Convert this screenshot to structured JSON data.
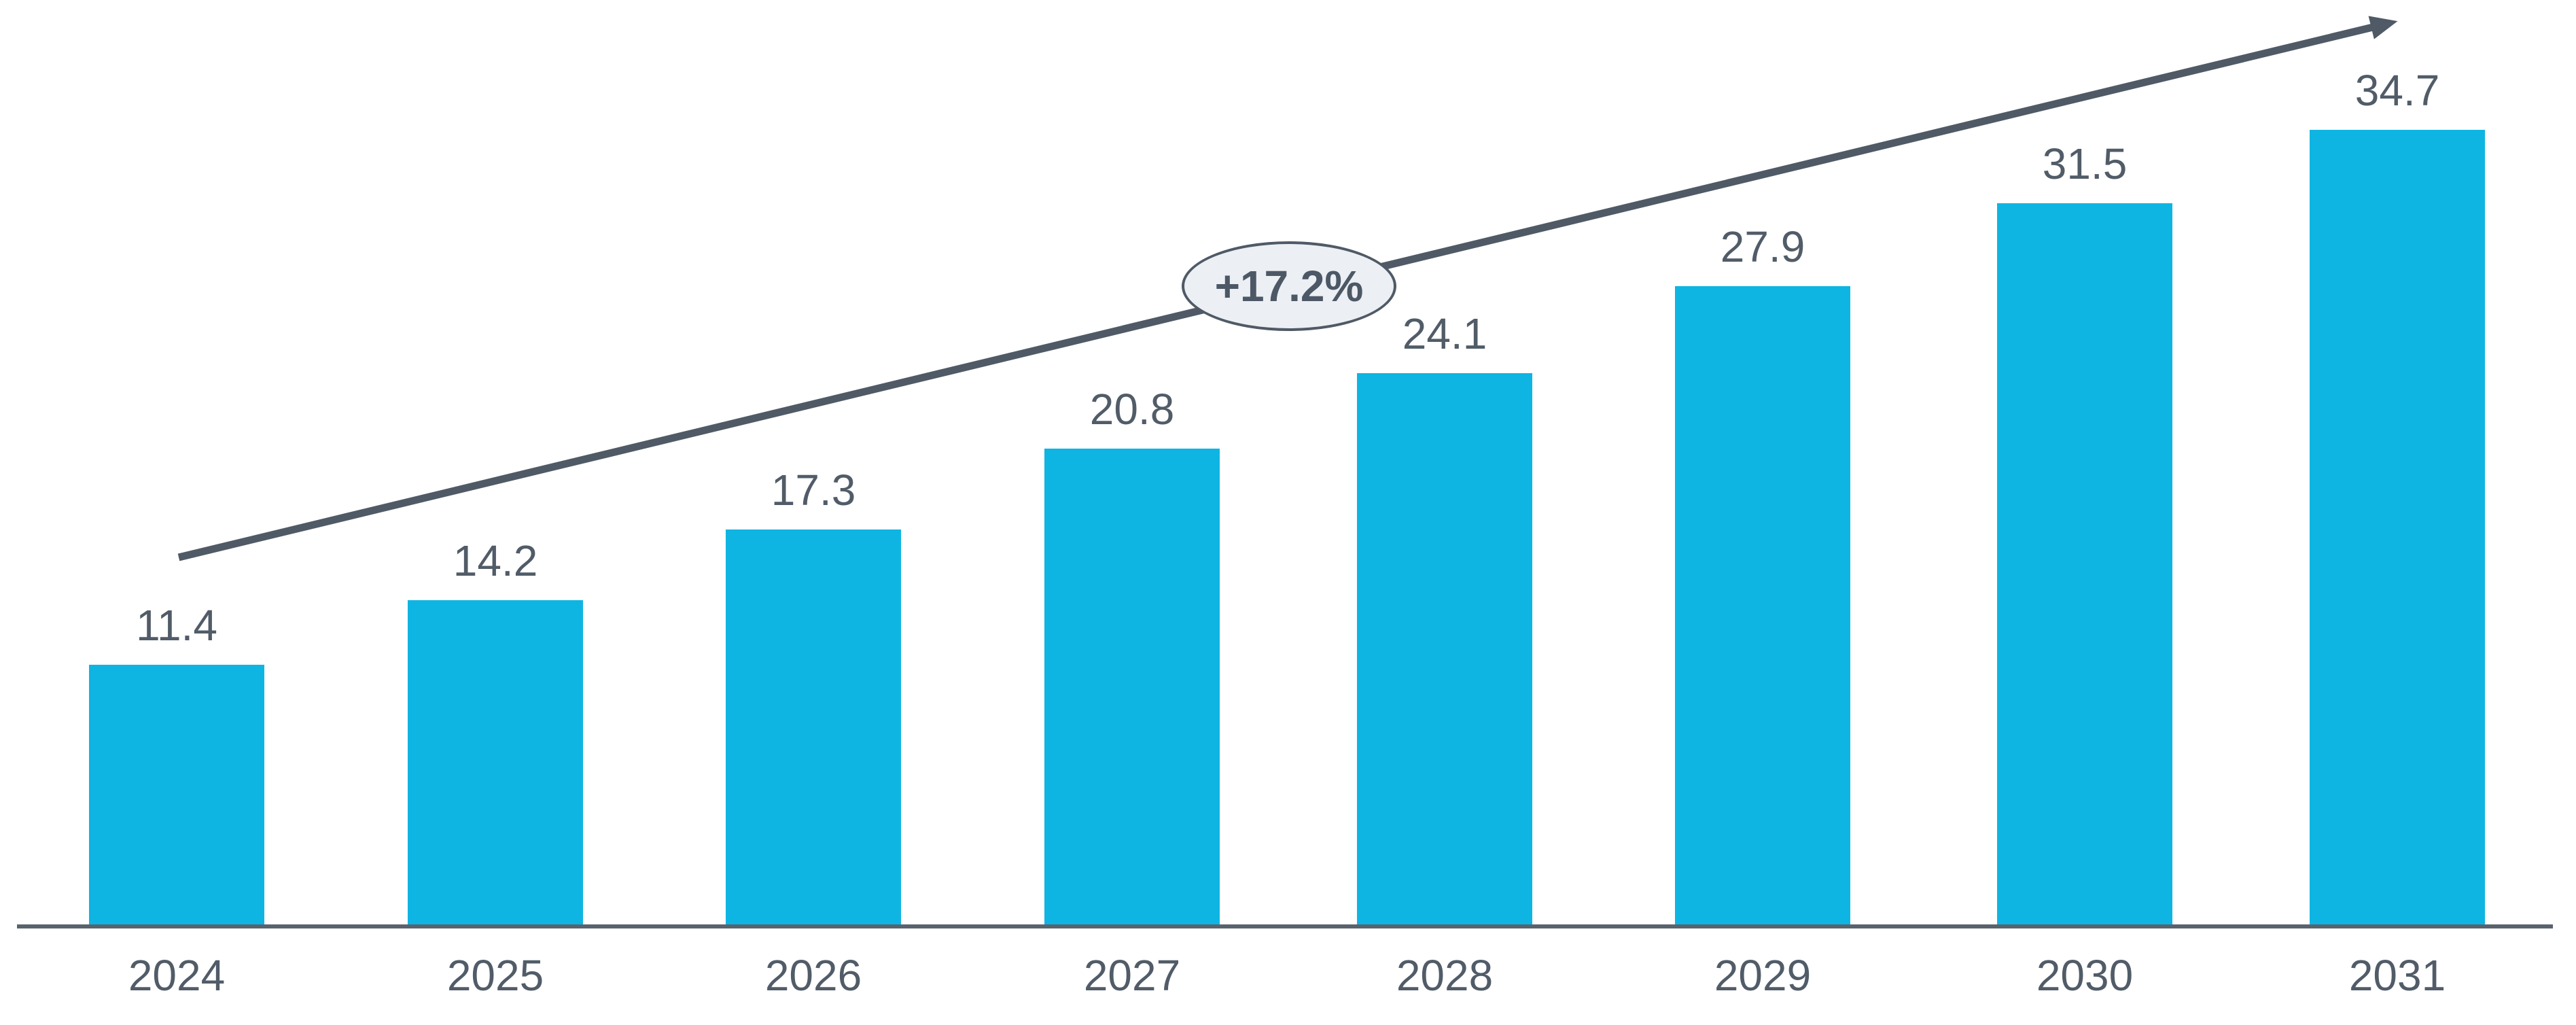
{
  "chart_data": {
    "type": "bar",
    "title": "",
    "xlabel": "",
    "ylabel": "",
    "categories": [
      "2024",
      "2025",
      "2026",
      "2027",
      "2028",
      "2029",
      "2030",
      "2031"
    ],
    "values": [
      11.4,
      14.2,
      17.3,
      20.8,
      24.1,
      27.9,
      31.5,
      34.7
    ],
    "value_labels": [
      "11.4",
      "14.2",
      "17.3",
      "20.8",
      "24.1",
      "27.9",
      "31.5",
      "34.7"
    ],
    "growth_label": "+17.2%",
    "ylim": [
      0,
      40
    ],
    "grid": false,
    "legend_position": "none",
    "bar_color": "#0FB5E2",
    "label_color": "#515C68",
    "arrow_color": "#4F5A66",
    "axis_color": "#59636E",
    "badge_fill_color": "#ECEFF3",
    "badge_border_color": "#4F5A66"
  }
}
